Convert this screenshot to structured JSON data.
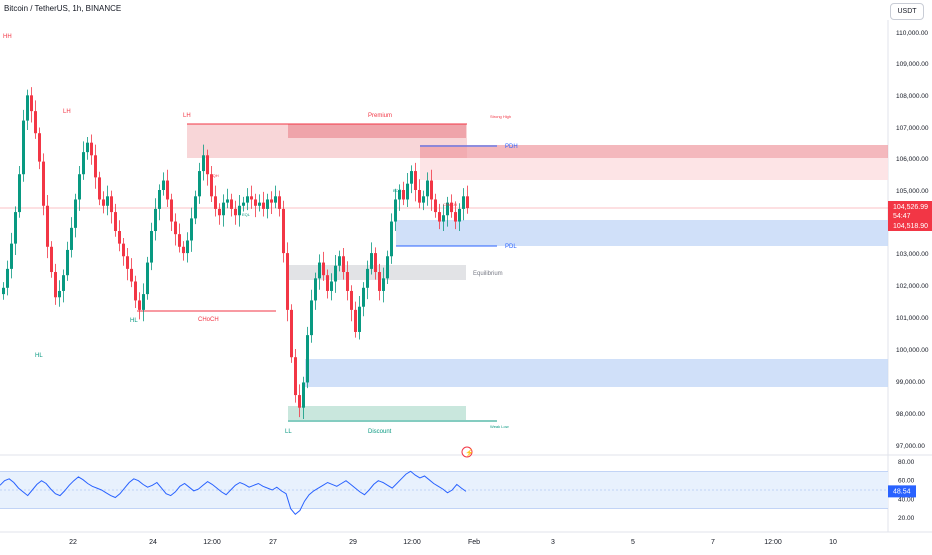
{
  "header": {
    "title": "Bitcoin / TetherUS, 1h, BINANCE",
    "currency": "USDT"
  },
  "colors": {
    "up": "#089981",
    "down": "#f23645",
    "premium_zone": "#f5c4c8",
    "discount_zone": "#c9e7dd",
    "blue_zone": "#c4d8f8",
    "equilibrium_zone": "#e2e3e6",
    "rsi_line": "#2962ff",
    "rsi_band": "#e8f1fd"
  },
  "chart_data": {
    "type": "candlestick",
    "price_axis": {
      "min": 96500,
      "max": 110500,
      "ticks": [
        "110,000.00",
        "109,000.00",
        "108,000.00",
        "107,000.00",
        "106,000.00",
        "105,000.00",
        "103,000.00",
        "102,000.00",
        "101,000.00",
        "100,000.00",
        "99,000.00",
        "98,000.00",
        "97,000.00"
      ]
    },
    "time_axis": {
      "ticks": [
        "22",
        "24",
        "12:00",
        "27",
        "29",
        "12:00",
        "Feb",
        "3",
        "5",
        "7",
        "12:00",
        "10"
      ]
    },
    "price_labels": {
      "last_price": "104,526.99",
      "countdown": "54:47",
      "second_price": "104,518.90"
    },
    "smc_labels": {
      "swings": [
        "HH",
        "LH",
        "LH",
        "HL",
        "HL",
        "LL"
      ],
      "structure": [
        "CHoCH",
        "Premium",
        "Discount",
        "Equilibrium",
        "Strong High",
        "Weak Low",
        "PDH",
        "PDL"
      ],
      "small": [
        "EQL",
        "EQH",
        "BOS",
        "CHoCH"
      ]
    },
    "candles_close": [
      102000,
      102600,
      103400,
      104400,
      105600,
      107300,
      108100,
      107600,
      106900,
      106000,
      104600,
      103300,
      102500,
      101700,
      101900,
      102400,
      103200,
      103900,
      104800,
      105600,
      106300,
      106600,
      106200,
      105500,
      104800,
      104600,
      104900,
      104400,
      103800,
      103400,
      103000,
      102600,
      102200,
      101600,
      101300,
      101800,
      102800,
      103800,
      104500,
      105100,
      105400,
      104800,
      104100,
      103700,
      103300,
      103100,
      103500,
      104200,
      104900,
      105700,
      106200,
      105600,
      104900,
      104500,
      104300,
      104700,
      104800,
      104500,
      104300,
      104600,
      104700,
      104900,
      104800,
      104600,
      104700,
      104500,
      104800,
      104700,
      104900,
      104500,
      103100,
      101300,
      99800,
      98600,
      98200,
      99000,
      100500,
      101600,
      102300,
      102800,
      102400,
      101900,
      102200,
      102700,
      103000,
      102500,
      101900,
      101300,
      100600,
      101400,
      102000,
      102600,
      103100,
      102500,
      101900,
      102300,
      103000,
      104100,
      104800,
      105100,
      104800,
      105300,
      105700,
      105100,
      104700,
      104900,
      105400,
      104800,
      104400,
      104100,
      104300,
      104700,
      104400,
      104100,
      104500,
      104900,
      104527
    ],
    "rsi": {
      "levels": [
        "80.00",
        "60.00",
        "40.00",
        "20.00"
      ],
      "current": "48.54",
      "min": 20,
      "max": 80,
      "values": [
        55,
        60,
        62,
        58,
        52,
        48,
        44,
        50,
        56,
        60,
        57,
        51,
        46,
        44,
        49,
        55,
        60,
        64,
        61,
        57,
        54,
        52,
        50,
        47,
        44,
        42,
        46,
        52,
        58,
        62,
        60,
        56,
        53,
        55,
        58,
        52,
        46,
        44,
        48,
        54,
        57,
        53,
        49,
        51,
        55,
        59,
        56,
        52,
        48,
        45,
        50,
        55,
        58,
        56,
        53,
        55,
        57,
        54,
        52,
        50,
        53,
        49,
        46,
        30,
        24,
        28,
        38,
        45,
        49,
        52,
        55,
        58,
        56,
        54,
        57,
        60,
        56,
        52,
        48,
        45,
        50,
        56,
        60,
        58,
        55,
        52,
        57,
        62,
        67,
        70,
        66,
        63,
        65,
        61,
        57,
        54,
        51,
        47,
        50,
        56,
        52,
        48.54
      ]
    }
  }
}
